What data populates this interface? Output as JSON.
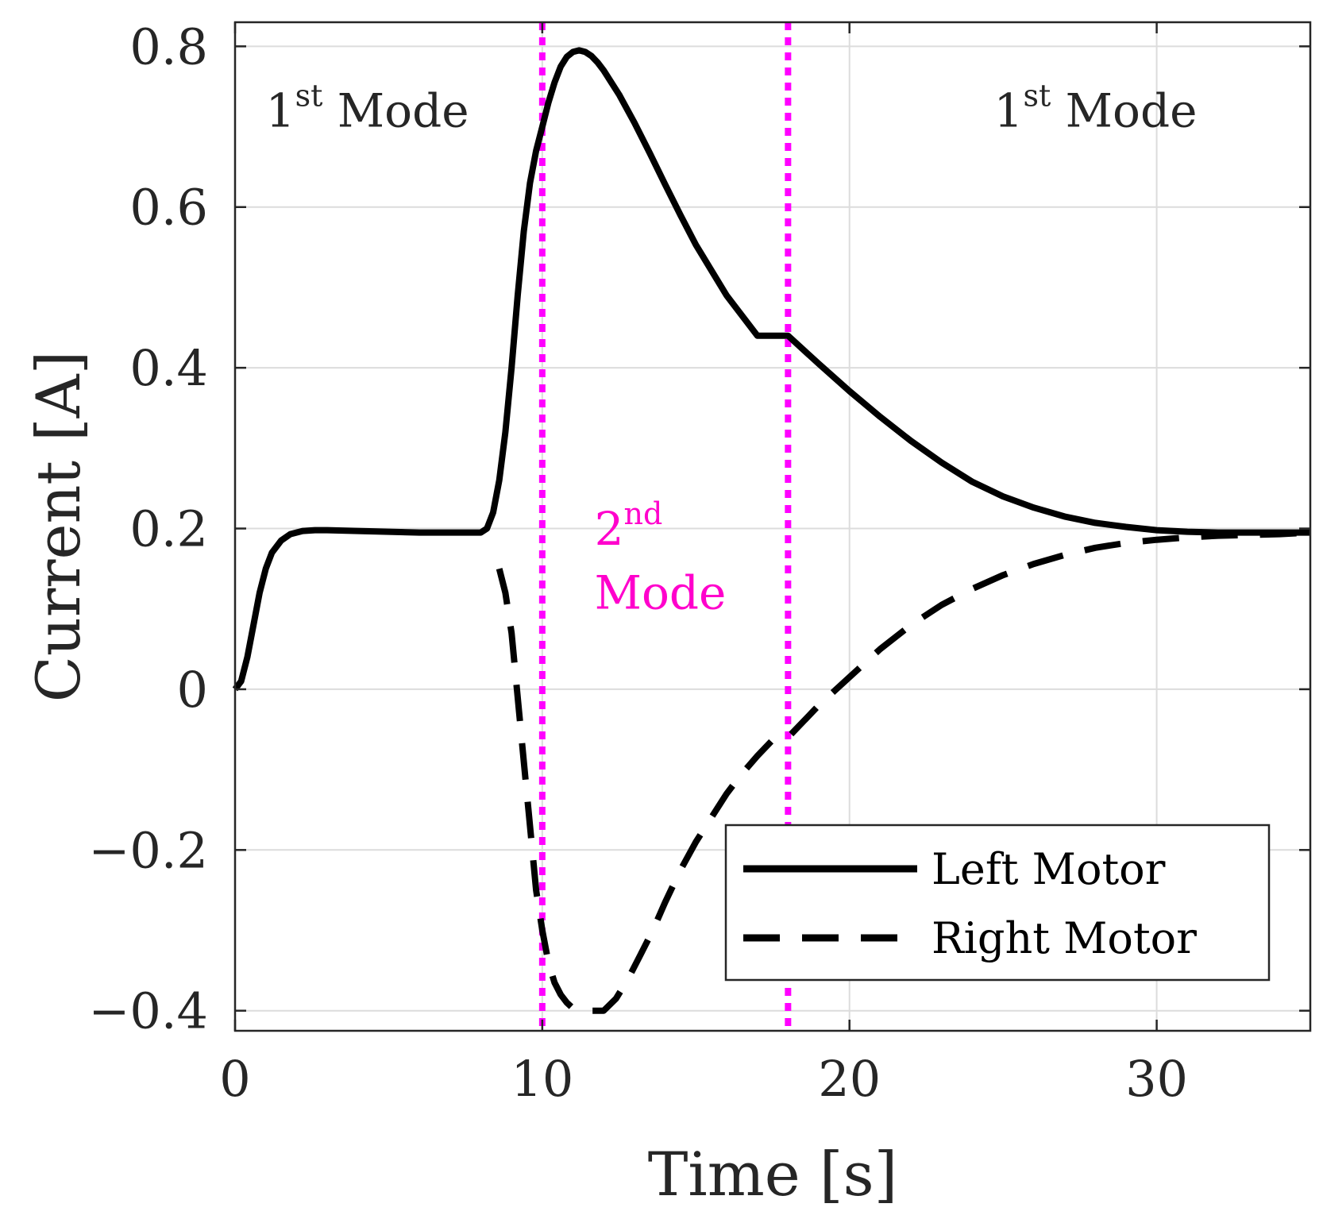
{
  "chart_data": {
    "type": "line",
    "xlabel": "Time [s]",
    "ylabel": "Current [A]",
    "xlim": [
      0,
      35
    ],
    "ylim": [
      -0.425,
      0.83
    ],
    "grid": true,
    "xticks": [
      0,
      10,
      20,
      30
    ],
    "yticks": [
      -0.4,
      -0.2,
      0,
      0.2,
      0.4,
      0.6,
      0.8
    ],
    "xtick_labels": [
      "0",
      "10",
      "20",
      "30"
    ],
    "ytick_labels": [
      "−0.4",
      "−0.2",
      "0",
      "0.2",
      "0.4",
      "0.6",
      "0.8"
    ],
    "vlines": [
      {
        "x": 10,
        "color": "#ff00ff",
        "style": "dotted"
      },
      {
        "x": 18,
        "color": "#ff00ff",
        "style": "dotted"
      }
    ],
    "annotations": [
      {
        "base": "1",
        "sup": "st",
        "rest": " Mode",
        "x": 1.0,
        "y": 0.7,
        "color": "#262626"
      },
      {
        "base": "2",
        "sup": "nd",
        "rest": "",
        "x": 11.7,
        "y": 0.18,
        "color": "#ff00cc"
      },
      {
        "base": "Mode",
        "sup": "",
        "rest": "",
        "x": 11.7,
        "y": 0.1,
        "color": "#ff00cc"
      },
      {
        "base": "1",
        "sup": "st",
        "rest": " Mode",
        "x": 24.7,
        "y": 0.7,
        "color": "#262626"
      }
    ],
    "legend": {
      "position": "bottom-right",
      "entries": [
        "Left Motor",
        "Right Motor"
      ]
    },
    "series": [
      {
        "name": "Left Motor",
        "style": "solid",
        "color": "#000000",
        "x": [
          0,
          0.2,
          0.4,
          0.6,
          0.8,
          1.0,
          1.2,
          1.5,
          1.8,
          2.2,
          2.6,
          3,
          4,
          5,
          6,
          7,
          8,
          8.2,
          8.4,
          8.6,
          8.8,
          9.0,
          9.2,
          9.4,
          9.6,
          9.8,
          10.0,
          10.2,
          10.4,
          10.6,
          10.8,
          11.0,
          11.2,
          11.4,
          11.6,
          11.8,
          12.0,
          12.5,
          13,
          13.5,
          14,
          14.5,
          15,
          16,
          17,
          18,
          19,
          20,
          21,
          22,
          23,
          24,
          25,
          26,
          27,
          28,
          29,
          30,
          31,
          32,
          33,
          34,
          35
        ],
        "y": [
          0,
          0.01,
          0.04,
          0.08,
          0.12,
          0.15,
          0.17,
          0.185,
          0.193,
          0.197,
          0.198,
          0.198,
          0.197,
          0.196,
          0.195,
          0.195,
          0.195,
          0.2,
          0.22,
          0.26,
          0.32,
          0.4,
          0.49,
          0.57,
          0.63,
          0.67,
          0.7,
          0.73,
          0.755,
          0.775,
          0.787,
          0.793,
          0.795,
          0.793,
          0.788,
          0.78,
          0.77,
          0.74,
          0.705,
          0.667,
          0.628,
          0.59,
          0.553,
          0.49,
          0.44,
          0.44,
          0.405,
          0.371,
          0.339,
          0.309,
          0.282,
          0.258,
          0.24,
          0.226,
          0.215,
          0.207,
          0.202,
          0.198,
          0.196,
          0.195,
          0.195,
          0.195,
          0.195
        ]
      },
      {
        "name": "Right Motor",
        "style": "dashed",
        "color": "#000000",
        "x": [
          8.6,
          8.8,
          9.0,
          9.2,
          9.4,
          9.6,
          9.8,
          10.0,
          10.2,
          10.4,
          10.6,
          10.8,
          11.0,
          11.3,
          11.6,
          12.0,
          12.4,
          12.8,
          13.2,
          13.6,
          14.0,
          14.5,
          15,
          15.5,
          16,
          16.5,
          17,
          17.5,
          18,
          18.5,
          19,
          20,
          21,
          22,
          23,
          24,
          25,
          26,
          27,
          28,
          29,
          30,
          31,
          32,
          33,
          34,
          35
        ],
        "y": [
          0.15,
          0.12,
          0.07,
          -0.01,
          -0.09,
          -0.17,
          -0.25,
          -0.3,
          -0.34,
          -0.365,
          -0.38,
          -0.39,
          -0.397,
          -0.4,
          -0.4,
          -0.4,
          -0.385,
          -0.36,
          -0.33,
          -0.3,
          -0.265,
          -0.225,
          -0.19,
          -0.16,
          -0.13,
          -0.105,
          -0.083,
          -0.063,
          -0.06,
          -0.04,
          -0.02,
          0.015,
          0.05,
          0.08,
          0.105,
          0.125,
          0.142,
          0.156,
          0.167,
          0.176,
          0.182,
          0.186,
          0.189,
          0.191,
          0.192,
          0.193,
          0.195
        ]
      }
    ]
  }
}
